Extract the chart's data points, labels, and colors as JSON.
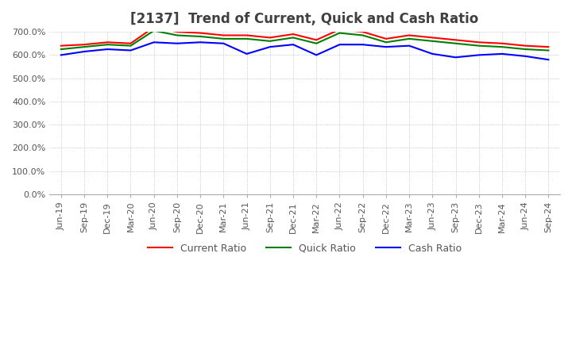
{
  "title": "[2137]  Trend of Current, Quick and Cash Ratio",
  "x_labels": [
    "Jun-19",
    "Sep-19",
    "Dec-19",
    "Mar-20",
    "Jun-20",
    "Sep-20",
    "Dec-20",
    "Mar-21",
    "Jun-21",
    "Sep-21",
    "Dec-21",
    "Mar-22",
    "Jun-22",
    "Sep-22",
    "Dec-22",
    "Mar-23",
    "Jun-23",
    "Sep-23",
    "Dec-23",
    "Mar-24",
    "Jun-24",
    "Sep-24"
  ],
  "current_ratio": [
    640,
    645,
    655,
    650,
    720,
    700,
    695,
    685,
    685,
    675,
    690,
    665,
    710,
    700,
    670,
    685,
    675,
    665,
    655,
    650,
    640,
    635
  ],
  "quick_ratio": [
    625,
    635,
    645,
    640,
    705,
    685,
    680,
    670,
    670,
    660,
    675,
    650,
    695,
    685,
    655,
    670,
    660,
    650,
    640,
    635,
    625,
    620
  ],
  "cash_ratio": [
    600,
    615,
    625,
    620,
    655,
    650,
    655,
    650,
    605,
    635,
    645,
    600,
    645,
    645,
    635,
    640,
    605,
    590,
    600,
    605,
    595,
    580
  ],
  "current_color": "#FF0000",
  "quick_color": "#008000",
  "cash_color": "#0000FF",
  "ylim": [
    0,
    700
  ],
  "yticks": [
    0,
    100,
    200,
    300,
    400,
    500,
    600,
    700
  ],
  "background_color": "#FFFFFF",
  "grid_color": "#AAAAAA",
  "title_fontsize": 12,
  "tick_fontsize": 8,
  "legend_fontsize": 9
}
